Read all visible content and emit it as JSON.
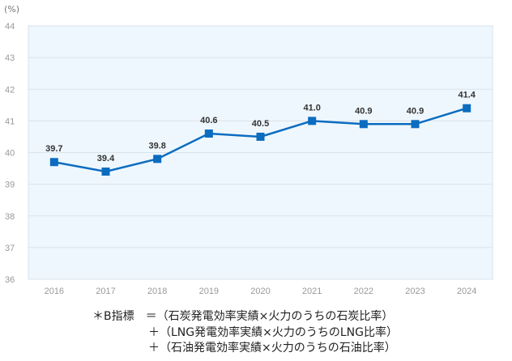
{
  "chart_data": {
    "type": "line",
    "title": "",
    "ylabel": "(%)",
    "xlabel": "",
    "ylim": [
      36,
      44
    ],
    "yticks": [
      36,
      37,
      38,
      39,
      40,
      41,
      42,
      43,
      44
    ],
    "categories": [
      "2016",
      "2017",
      "2018",
      "2019",
      "2020",
      "2021",
      "2022",
      "2023",
      "2024"
    ],
    "series": [
      {
        "name": "B指標",
        "values": [
          39.7,
          39.4,
          39.8,
          40.6,
          40.5,
          41.0,
          40.9,
          40.9,
          41.4
        ],
        "labels": [
          "39.7",
          "39.4",
          "39.8",
          "40.6",
          "40.5",
          "41.0",
          "40.9",
          "40.9",
          "41.4"
        ]
      }
    ],
    "grid": true,
    "legend": "none",
    "colors": {
      "line": "#0B6CC0",
      "plot_bg": "#EEF7FD",
      "grid": "#D9E3EA"
    }
  },
  "footnote": {
    "line1": "＊B指標　＝（石炭発電効率実績×火力のうちの石炭比率）",
    "line2": "＋（LNG発電効率実績×火力のうちのLNG比率）",
    "line3": "＋（石油発電効率実績×火力のうちの石油比率）"
  }
}
